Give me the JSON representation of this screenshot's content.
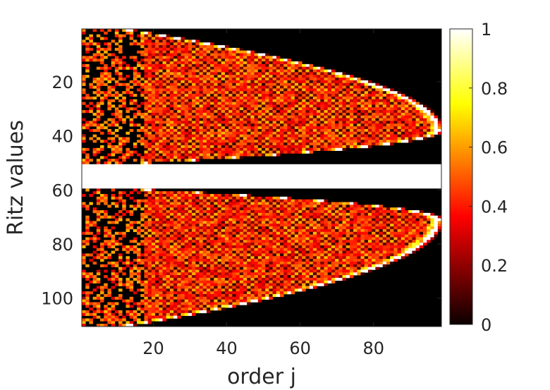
{
  "chart_data": {
    "type": "heatmap",
    "title": "",
    "xlabel": "order j",
    "ylabel": "Ritz values",
    "xlim": [
      1,
      99
    ],
    "ylim": [
      110,
      1
    ],
    "x_ticks": [
      20,
      40,
      60,
      80
    ],
    "y_ticks": [
      20,
      40,
      60,
      80,
      100
    ],
    "colorbar": {
      "colormap": "hot",
      "range": [
        0,
        1
      ],
      "ticks": [
        0,
        0.2,
        0.4,
        0.6,
        0.8,
        1
      ],
      "tick_labels": [
        "0",
        "0.2",
        "0.4",
        "0.6",
        "0.8",
        "1"
      ]
    },
    "description_of_values": "Two lens-shaped (parabolic) regions of nonzero values: an upper region spanning rows 1-50 and a lower region spanning rows 60-110, both with apex near order j of 98 and opening toward the left; rows 51-59 are empty (white band). Bright values (near 1) lie on the outer boundary arc, interior is a checkerboard of mixed values 0-0.6.",
    "upper_region": {
      "row_start": 1,
      "row_end": 50,
      "apex_row": 38,
      "apex_order": 98,
      "outer_start_order": 12
    },
    "lower_region": {
      "row_start": 60,
      "row_end": 110,
      "apex_row": 71,
      "apex_order": 98,
      "outer_start_order": 12
    },
    "gap_rows": [
      51,
      59
    ]
  }
}
